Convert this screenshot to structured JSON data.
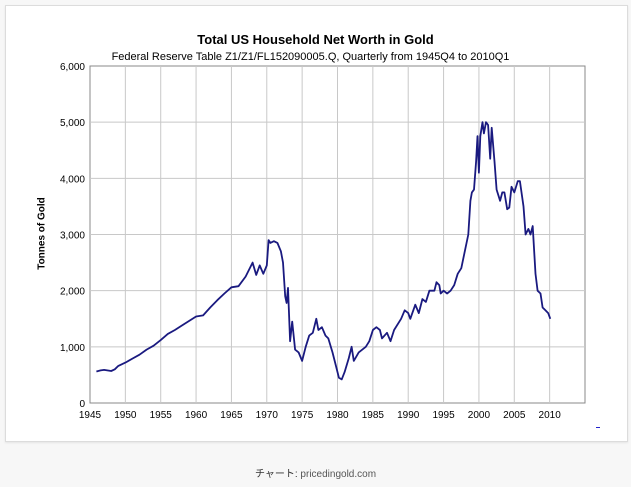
{
  "chart_data": {
    "type": "line",
    "title": "Total US Household Net Worth in Gold",
    "subtitle": "Federal Reserve Table Z1/Z1/FL152090005.Q, Quarterly from 1945Q4 to 2010Q1",
    "xlabel": "",
    "ylabel": "Tonnes of Gold",
    "xlim": [
      1945,
      2015
    ],
    "ylim": [
      0,
      6000
    ],
    "grid": true,
    "x_ticks": [
      "1945",
      "1950",
      "1955",
      "1960",
      "1965",
      "1970",
      "1975",
      "1980",
      "1985",
      "1990",
      "1995",
      "2000",
      "2005",
      "2010"
    ],
    "y_ticks": [
      "0",
      "1,000",
      "2,000",
      "3,000",
      "4,000",
      "5,000",
      "6,000"
    ],
    "line_color": "#1a1a80",
    "series": [
      {
        "name": "Tonnes of Gold",
        "x": [
          1945.9,
          1946.5,
          1947,
          1948,
          1948.5,
          1949,
          1950,
          1951,
          1952,
          1953,
          1954,
          1955,
          1956,
          1957,
          1958,
          1959,
          1960,
          1961,
          1962,
          1963,
          1964,
          1965,
          1966,
          1967,
          1968,
          1968.5,
          1969,
          1969.5,
          1970,
          1970.25,
          1970.5,
          1971,
          1971.5,
          1972,
          1972.3,
          1972.6,
          1972.8,
          1973,
          1973.3,
          1973.6,
          1974,
          1974.5,
          1975,
          1975.5,
          1976,
          1976.5,
          1977,
          1977.3,
          1977.8,
          1978.3,
          1978.7,
          1979.3,
          1979.8,
          1980.2,
          1980.6,
          1981,
          1981.6,
          1982,
          1982.3,
          1983,
          1984,
          1984.5,
          1985,
          1985.5,
          1986,
          1986.3,
          1987,
          1987.5,
          1988,
          1989,
          1989.5,
          1990,
          1990.3,
          1991,
          1991.5,
          1992,
          1992.5,
          1993,
          1993.7,
          1994,
          1994.4,
          1994.6,
          1995,
          1995.5,
          1996,
          1996.5,
          1997,
          1997.5,
          1998,
          1998.5,
          1998.8,
          1999,
          1999.3,
          1999.6,
          1999.8,
          2000,
          2000.2,
          2000.5,
          2000.7,
          2001,
          2001.3,
          2001.6,
          2001.8,
          2002.2,
          2002.5,
          2003,
          2003.3,
          2003.6,
          2004,
          2004.3,
          2004.6,
          2005,
          2005.5,
          2005.8,
          2006.3,
          2006.6,
          2007,
          2007.3,
          2007.6,
          2008,
          2008.3,
          2008.7,
          2009,
          2009.4,
          2009.8,
          2010.1
        ],
        "values": [
          560,
          580,
          590,
          570,
          600,
          660,
          720,
          790,
          860,
          950,
          1020,
          1120,
          1230,
          1300,
          1380,
          1460,
          1540,
          1560,
          1700,
          1830,
          1950,
          2060,
          2080,
          2250,
          2500,
          2280,
          2450,
          2300,
          2450,
          2900,
          2850,
          2880,
          2850,
          2700,
          2500,
          1900,
          1780,
          2050,
          1100,
          1450,
          950,
          900,
          750,
          1000,
          1200,
          1250,
          1500,
          1300,
          1350,
          1200,
          1150,
          900,
          650,
          450,
          420,
          550,
          800,
          1000,
          750,
          900,
          1000,
          1100,
          1300,
          1350,
          1300,
          1150,
          1250,
          1100,
          1300,
          1500,
          1650,
          1600,
          1500,
          1750,
          1600,
          1850,
          1800,
          2000,
          2000,
          2150,
          2100,
          1950,
          2000,
          1950,
          2000,
          2100,
          2300,
          2400,
          2700,
          3000,
          3600,
          3750,
          3800,
          4300,
          4750,
          4100,
          4750,
          5000,
          4800,
          5000,
          4950,
          4350,
          4900,
          4300,
          3800,
          3600,
          3750,
          3750,
          3450,
          3480,
          3850,
          3750,
          3950,
          3950,
          3500,
          3000,
          3100,
          3000,
          3150,
          2300,
          2000,
          1950,
          1700,
          1650,
          1600,
          1500
        ]
      }
    ]
  },
  "footer": {
    "label": "チャート:",
    "source": "pricedingold.com"
  }
}
